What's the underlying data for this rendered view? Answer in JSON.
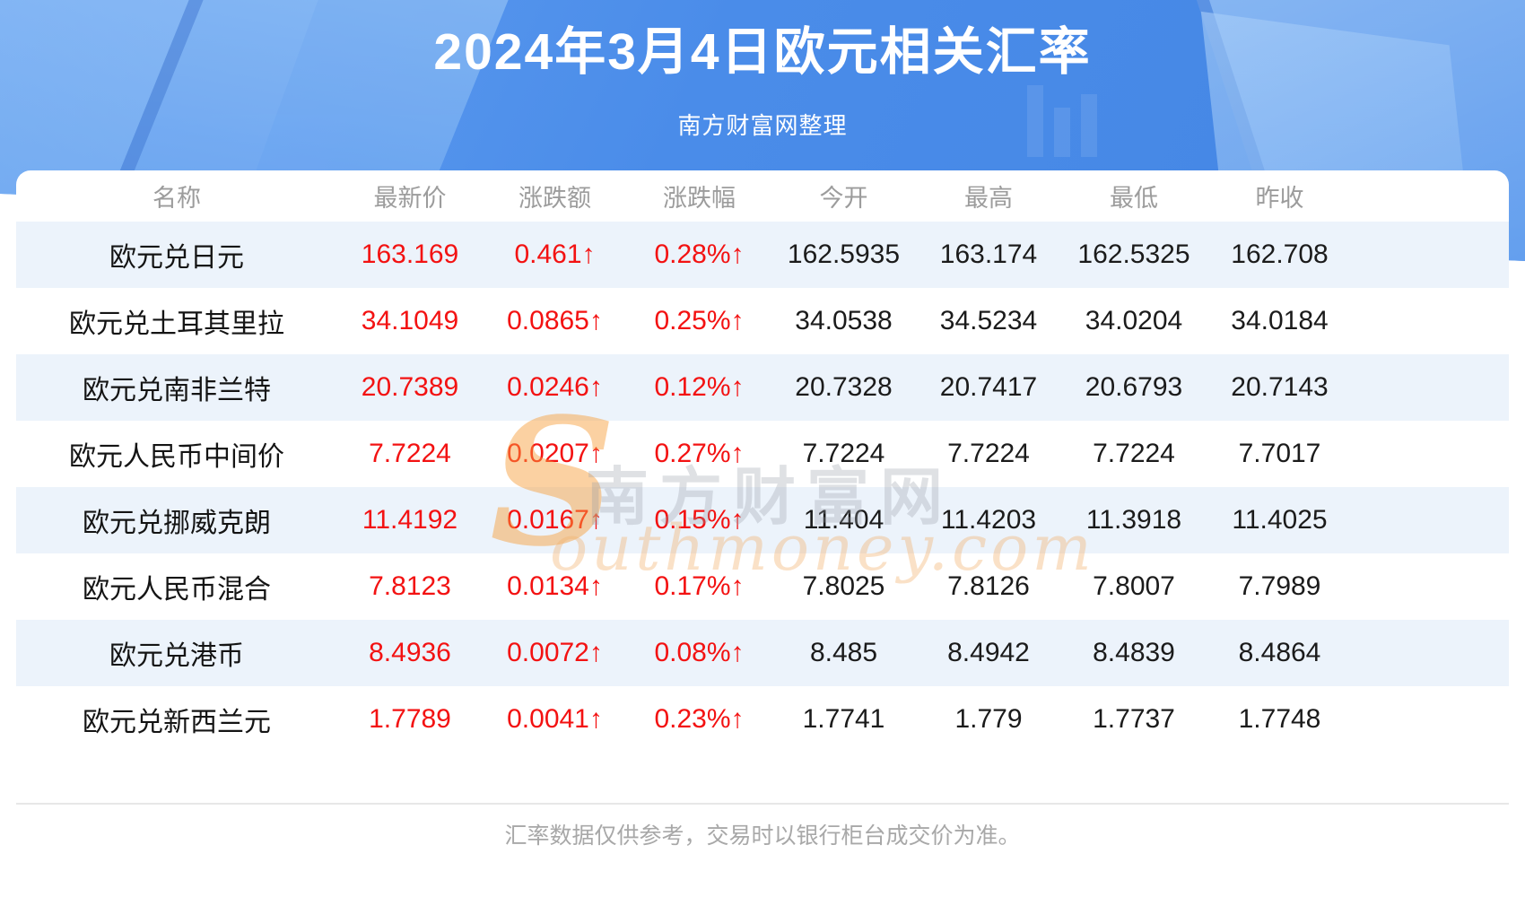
{
  "header": {
    "title": "2024年3月4日欧元相关汇率",
    "subtitle": "南方财富网整理"
  },
  "watermark": {
    "s": "S",
    "cn": "南方财富网",
    "en": "outhmoney.com"
  },
  "footer": {
    "disclaimer": "汇率数据仅供参考，交易时以银行柜台成交价为准。"
  },
  "colors": {
    "hero_blue": "#4a8ce9",
    "row_stripe": "#ecf3fb",
    "up_red": "#f31212",
    "header_gray": "#9c9c9c",
    "watermark_orange": "#f69e3c"
  },
  "chart_data": {
    "type": "table",
    "title": "2024年3月4日欧元相关汇率",
    "subtitle": "南方财富网整理",
    "columns": [
      "名称",
      "最新价",
      "涨跌额",
      "涨跌幅",
      "今开",
      "最高",
      "最低",
      "昨收"
    ],
    "rows": [
      [
        "欧元兑日元",
        "163.169",
        "0.461↑",
        "0.28%↑",
        "162.5935",
        "163.174",
        "162.5325",
        "162.708"
      ],
      [
        "欧元兑土耳其里拉",
        "34.1049",
        "0.0865↑",
        "0.25%↑",
        "34.0538",
        "34.5234",
        "34.0204",
        "34.0184"
      ],
      [
        "欧元兑南非兰特",
        "20.7389",
        "0.0246↑",
        "0.12%↑",
        "20.7328",
        "20.7417",
        "20.6793",
        "20.7143"
      ],
      [
        "欧元人民币中间价",
        "7.7224",
        "0.0207↑",
        "0.27%↑",
        "7.7224",
        "7.7224",
        "7.7224",
        "7.7017"
      ],
      [
        "欧元兑挪威克朗",
        "11.4192",
        "0.0167↑",
        "0.15%↑",
        "11.404",
        "11.4203",
        "11.3918",
        "11.4025"
      ],
      [
        "欧元人民币混合",
        "7.8123",
        "0.0134↑",
        "0.17%↑",
        "7.8025",
        "7.8126",
        "7.8007",
        "7.7989"
      ],
      [
        "欧元兑港币",
        "8.4936",
        "0.0072↑",
        "0.08%↑",
        "8.485",
        "8.4942",
        "8.4839",
        "8.4864"
      ],
      [
        "欧元兑新西兰元",
        "1.7789",
        "0.0041↑",
        "0.23%↑",
        "1.7741",
        "1.779",
        "1.7737",
        "1.7748"
      ]
    ],
    "red_value_column_indexes": [
      1,
      2,
      3
    ],
    "notes": "all change values are up (red with ↑ arrow); odd data rows have light-blue stripe background"
  }
}
